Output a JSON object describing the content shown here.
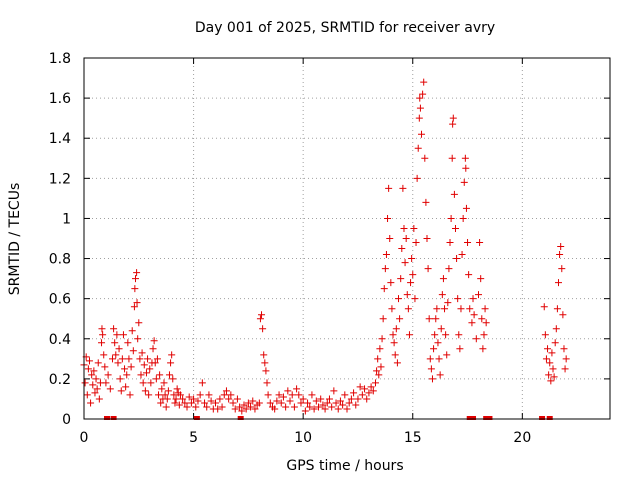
{
  "chart_data": {
    "type": "scatter",
    "title": "Day 001 of 2025, SRMTID for receiver avry",
    "xlabel": "GPS time / hours",
    "ylabel": "SRMTID / TECUs",
    "xlim": [
      0,
      24
    ],
    "ylim": [
      0,
      1.8
    ],
    "xticks": [
      0,
      5,
      10,
      15,
      20
    ],
    "yticks": [
      0,
      0.2,
      0.4,
      0.6,
      0.8,
      1,
      1.2,
      1.4,
      1.6,
      1.8
    ],
    "xtick_labels": [
      "0",
      "5",
      "10",
      "15",
      "20"
    ],
    "ytick_labels": [
      "0",
      "0.2",
      "0.4",
      "0.6",
      "0.8",
      "1",
      "1.2",
      "1.4",
      "1.6",
      "1.8"
    ],
    "grid": true,
    "legend": "none",
    "marker": "plus",
    "color": "#e00000",
    "zero_markers_x": [
      1.05,
      1.35,
      5.15,
      7.15,
      17.6,
      17.75,
      18.35,
      18.5,
      20.9,
      21.25
    ],
    "series": [
      {
        "name": "SRMTID",
        "points": [
          [
            0.0,
            0.27
          ],
          [
            0.05,
            0.18
          ],
          [
            0.1,
            0.31
          ],
          [
            0.15,
            0.12
          ],
          [
            0.2,
            0.25
          ],
          [
            0.25,
            0.29
          ],
          [
            0.3,
            0.08
          ],
          [
            0.35,
            0.22
          ],
          [
            0.4,
            0.17
          ],
          [
            0.45,
            0.24
          ],
          [
            0.5,
            0.13
          ],
          [
            0.55,
            0.2
          ],
          [
            0.6,
            0.15
          ],
          [
            0.65,
            0.28
          ],
          [
            0.7,
            0.1
          ],
          [
            0.75,
            0.18
          ],
          [
            0.8,
            0.38
          ],
          [
            0.82,
            0.45
          ],
          [
            0.85,
            0.42
          ],
          [
            0.9,
            0.32
          ],
          [
            0.95,
            0.26
          ],
          [
            1.0,
            0.18
          ],
          [
            1.1,
            0.22
          ],
          [
            1.2,
            0.15
          ],
          [
            1.3,
            0.3
          ],
          [
            1.35,
            0.45
          ],
          [
            1.4,
            0.38
          ],
          [
            1.45,
            0.32
          ],
          [
            1.5,
            0.42
          ],
          [
            1.55,
            0.28
          ],
          [
            1.6,
            0.35
          ],
          [
            1.65,
            0.2
          ],
          [
            1.7,
            0.14
          ],
          [
            1.75,
            0.3
          ],
          [
            1.8,
            0.42
          ],
          [
            1.85,
            0.25
          ],
          [
            1.9,
            0.16
          ],
          [
            1.95,
            0.22
          ],
          [
            2.0,
            0.38
          ],
          [
            2.05,
            0.3
          ],
          [
            2.1,
            0.12
          ],
          [
            2.15,
            0.26
          ],
          [
            2.2,
            0.44
          ],
          [
            2.25,
            0.34
          ],
          [
            2.3,
            0.56
          ],
          [
            2.32,
            0.65
          ],
          [
            2.35,
            0.7
          ],
          [
            2.4,
            0.73
          ],
          [
            2.42,
            0.58
          ],
          [
            2.45,
            0.4
          ],
          [
            2.5,
            0.48
          ],
          [
            2.55,
            0.3
          ],
          [
            2.6,
            0.22
          ],
          [
            2.65,
            0.33
          ],
          [
            2.7,
            0.18
          ],
          [
            2.75,
            0.27
          ],
          [
            2.8,
            0.14
          ],
          [
            2.85,
            0.23
          ],
          [
            2.9,
            0.3
          ],
          [
            2.95,
            0.12
          ],
          [
            3.0,
            0.25
          ],
          [
            3.05,
            0.18
          ],
          [
            3.1,
            0.28
          ],
          [
            3.15,
            0.35
          ],
          [
            3.2,
            0.39
          ],
          [
            3.25,
            0.28
          ],
          [
            3.3,
            0.2
          ],
          [
            3.35,
            0.3
          ],
          [
            3.4,
            0.12
          ],
          [
            3.45,
            0.22
          ],
          [
            3.5,
            0.08
          ],
          [
            3.55,
            0.15
          ],
          [
            3.6,
            0.1
          ],
          [
            3.65,
            0.18
          ],
          [
            3.7,
            0.12
          ],
          [
            3.75,
            0.06
          ],
          [
            3.8,
            0.1
          ],
          [
            3.85,
            0.14
          ],
          [
            3.9,
            0.22
          ],
          [
            3.95,
            0.28
          ],
          [
            4.0,
            0.32
          ],
          [
            4.05,
            0.2
          ],
          [
            4.1,
            0.12
          ],
          [
            4.15,
            0.08
          ],
          [
            4.2,
            0.1
          ],
          [
            4.25,
            0.15
          ],
          [
            4.3,
            0.13
          ],
          [
            4.35,
            0.07
          ],
          [
            4.4,
            0.12
          ],
          [
            4.5,
            0.1
          ],
          [
            4.6,
            0.08
          ],
          [
            4.7,
            0.06
          ],
          [
            4.8,
            0.11
          ],
          [
            4.9,
            0.08
          ],
          [
            5.0,
            0.1
          ],
          [
            5.1,
            0.06
          ],
          [
            5.2,
            0.09
          ],
          [
            5.3,
            0.12
          ],
          [
            5.4,
            0.18
          ],
          [
            5.5,
            0.08
          ],
          [
            5.6,
            0.06
          ],
          [
            5.7,
            0.12
          ],
          [
            5.8,
            0.09
          ],
          [
            5.9,
            0.05
          ],
          [
            6.0,
            0.08
          ],
          [
            6.1,
            0.05
          ],
          [
            6.2,
            0.1
          ],
          [
            6.3,
            0.06
          ],
          [
            6.4,
            0.12
          ],
          [
            6.5,
            0.14
          ],
          [
            6.6,
            0.1
          ],
          [
            6.7,
            0.12
          ],
          [
            6.8,
            0.08
          ],
          [
            6.9,
            0.05
          ],
          [
            7.0,
            0.1
          ],
          [
            7.1,
            0.06
          ],
          [
            7.2,
            0.04
          ],
          [
            7.3,
            0.07
          ],
          [
            7.4,
            0.05
          ],
          [
            7.5,
            0.08
          ],
          [
            7.6,
            0.06
          ],
          [
            7.7,
            0.09
          ],
          [
            7.8,
            0.05
          ],
          [
            7.9,
            0.07
          ],
          [
            8.0,
            0.08
          ],
          [
            8.05,
            0.5
          ],
          [
            8.1,
            0.52
          ],
          [
            8.15,
            0.45
          ],
          [
            8.2,
            0.32
          ],
          [
            8.25,
            0.28
          ],
          [
            8.3,
            0.24
          ],
          [
            8.35,
            0.18
          ],
          [
            8.4,
            0.12
          ],
          [
            8.5,
            0.08
          ],
          [
            8.6,
            0.06
          ],
          [
            8.7,
            0.05
          ],
          [
            8.8,
            0.09
          ],
          [
            8.9,
            0.12
          ],
          [
            9.0,
            0.08
          ],
          [
            9.1,
            0.11
          ],
          [
            9.2,
            0.06
          ],
          [
            9.3,
            0.14
          ],
          [
            9.4,
            0.09
          ],
          [
            9.5,
            0.12
          ],
          [
            9.6,
            0.06
          ],
          [
            9.7,
            0.15
          ],
          [
            9.8,
            0.12
          ],
          [
            9.9,
            0.08
          ],
          [
            10.0,
            0.1
          ],
          [
            10.1,
            0.04
          ],
          [
            10.2,
            0.08
          ],
          [
            10.3,
            0.06
          ],
          [
            10.4,
            0.12
          ],
          [
            10.5,
            0.05
          ],
          [
            10.6,
            0.09
          ],
          [
            10.7,
            0.06
          ],
          [
            10.8,
            0.1
          ],
          [
            10.9,
            0.07
          ],
          [
            11.0,
            0.05
          ],
          [
            11.1,
            0.08
          ],
          [
            11.2,
            0.1
          ],
          [
            11.3,
            0.06
          ],
          [
            11.4,
            0.14
          ],
          [
            11.5,
            0.08
          ],
          [
            11.6,
            0.05
          ],
          [
            11.7,
            0.09
          ],
          [
            11.8,
            0.07
          ],
          [
            11.9,
            0.12
          ],
          [
            12.0,
            0.05
          ],
          [
            12.1,
            0.08
          ],
          [
            12.2,
            0.1
          ],
          [
            12.3,
            0.13
          ],
          [
            12.4,
            0.07
          ],
          [
            12.5,
            0.1
          ],
          [
            12.6,
            0.16
          ],
          [
            12.7,
            0.12
          ],
          [
            12.8,
            0.15
          ],
          [
            12.9,
            0.1
          ],
          [
            13.0,
            0.13
          ],
          [
            13.1,
            0.16
          ],
          [
            13.2,
            0.14
          ],
          [
            13.3,
            0.18
          ],
          [
            13.35,
            0.24
          ],
          [
            13.4,
            0.3
          ],
          [
            13.45,
            0.22
          ],
          [
            13.5,
            0.35
          ],
          [
            13.55,
            0.26
          ],
          [
            13.6,
            0.4
          ],
          [
            13.65,
            0.5
          ],
          [
            13.7,
            0.65
          ],
          [
            13.75,
            0.75
          ],
          [
            13.8,
            0.82
          ],
          [
            13.85,
            1.0
          ],
          [
            13.9,
            1.15
          ],
          [
            13.95,
            0.9
          ],
          [
            14.0,
            0.68
          ],
          [
            14.05,
            0.55
          ],
          [
            14.1,
            0.42
          ],
          [
            14.15,
            0.38
          ],
          [
            14.2,
            0.32
          ],
          [
            14.25,
            0.45
          ],
          [
            14.3,
            0.28
          ],
          [
            14.35,
            0.6
          ],
          [
            14.4,
            0.5
          ],
          [
            14.45,
            0.7
          ],
          [
            14.5,
            0.85
          ],
          [
            14.55,
            1.15
          ],
          [
            14.6,
            0.95
          ],
          [
            14.65,
            0.78
          ],
          [
            14.7,
            0.9
          ],
          [
            14.75,
            0.62
          ],
          [
            14.8,
            0.55
          ],
          [
            14.85,
            0.42
          ],
          [
            14.9,
            0.68
          ],
          [
            14.95,
            0.8
          ],
          [
            15.0,
            0.72
          ],
          [
            15.05,
            0.95
          ],
          [
            15.1,
            0.6
          ],
          [
            15.15,
            0.88
          ],
          [
            15.2,
            1.2
          ],
          [
            15.25,
            1.35
          ],
          [
            15.3,
            1.5
          ],
          [
            15.32,
            1.6
          ],
          [
            15.35,
            1.55
          ],
          [
            15.4,
            1.42
          ],
          [
            15.45,
            1.62
          ],
          [
            15.5,
            1.68
          ],
          [
            15.55,
            1.3
          ],
          [
            15.6,
            1.08
          ],
          [
            15.65,
            0.9
          ],
          [
            15.7,
            0.75
          ],
          [
            15.75,
            0.5
          ],
          [
            15.8,
            0.3
          ],
          [
            15.85,
            0.25
          ],
          [
            15.9,
            0.2
          ],
          [
            15.95,
            0.35
          ],
          [
            16.0,
            0.42
          ],
          [
            16.05,
            0.5
          ],
          [
            16.1,
            0.55
          ],
          [
            16.15,
            0.38
          ],
          [
            16.2,
            0.3
          ],
          [
            16.25,
            0.22
          ],
          [
            16.3,
            0.45
          ],
          [
            16.35,
            0.62
          ],
          [
            16.4,
            0.7
          ],
          [
            16.45,
            0.55
          ],
          [
            16.5,
            0.42
          ],
          [
            16.55,
            0.32
          ],
          [
            16.6,
            0.58
          ],
          [
            16.65,
            0.75
          ],
          [
            16.7,
            0.88
          ],
          [
            16.75,
            1.0
          ],
          [
            16.8,
            1.3
          ],
          [
            16.82,
            1.47
          ],
          [
            16.85,
            1.5
          ],
          [
            16.9,
            1.12
          ],
          [
            16.95,
            0.95
          ],
          [
            17.0,
            0.8
          ],
          [
            17.05,
            0.6
          ],
          [
            17.1,
            0.42
          ],
          [
            17.15,
            0.35
          ],
          [
            17.2,
            0.55
          ],
          [
            17.25,
            0.82
          ],
          [
            17.3,
            1.0
          ],
          [
            17.35,
            1.18
          ],
          [
            17.4,
            1.3
          ],
          [
            17.42,
            1.25
          ],
          [
            17.45,
            1.05
          ],
          [
            17.5,
            0.88
          ],
          [
            17.55,
            0.72
          ],
          [
            17.6,
            0.55
          ],
          [
            17.7,
            0.48
          ],
          [
            17.75,
            0.6
          ],
          [
            17.8,
            0.52
          ],
          [
            17.9,
            0.4
          ],
          [
            18.0,
            0.62
          ],
          [
            18.05,
            0.88
          ],
          [
            18.1,
            0.7
          ],
          [
            18.15,
            0.5
          ],
          [
            18.2,
            0.35
          ],
          [
            18.25,
            0.42
          ],
          [
            18.3,
            0.55
          ],
          [
            18.35,
            0.48
          ],
          [
            21.0,
            0.56
          ],
          [
            21.05,
            0.42
          ],
          [
            21.1,
            0.3
          ],
          [
            21.15,
            0.35
          ],
          [
            21.2,
            0.22
          ],
          [
            21.25,
            0.28
          ],
          [
            21.3,
            0.19
          ],
          [
            21.35,
            0.33
          ],
          [
            21.4,
            0.25
          ],
          [
            21.45,
            0.21
          ],
          [
            21.5,
            0.38
          ],
          [
            21.55,
            0.45
          ],
          [
            21.6,
            0.55
          ],
          [
            21.65,
            0.68
          ],
          [
            21.7,
            0.82
          ],
          [
            21.75,
            0.86
          ],
          [
            21.8,
            0.75
          ],
          [
            21.85,
            0.52
          ],
          [
            21.9,
            0.35
          ],
          [
            21.95,
            0.25
          ],
          [
            22.0,
            0.3
          ]
        ]
      }
    ]
  }
}
